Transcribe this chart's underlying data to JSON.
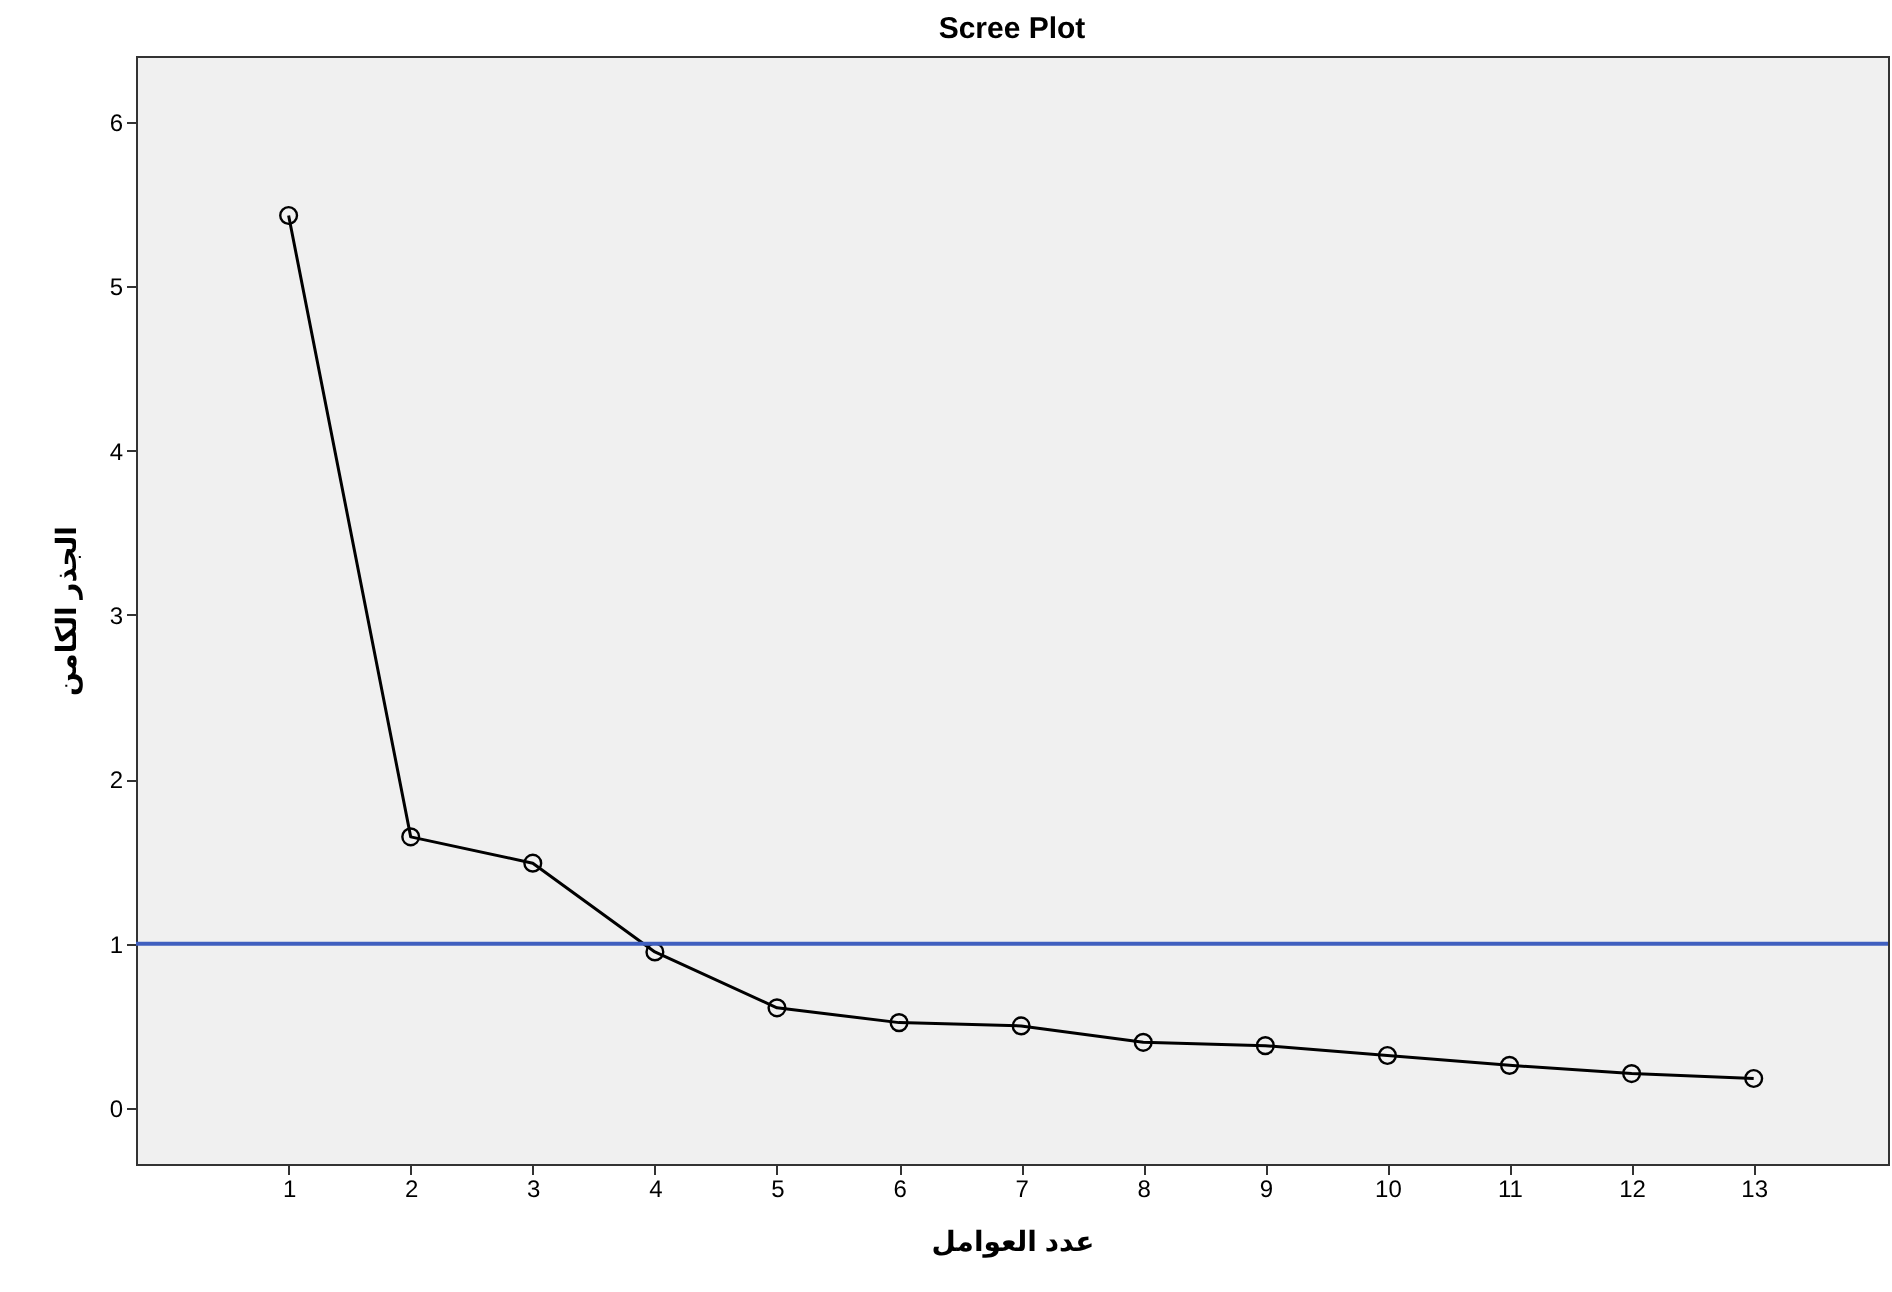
{
  "chart_data": {
    "type": "line",
    "title": "Scree Plot",
    "xlabel": "عدد العوامل",
    "ylabel": "الجذر الكامن",
    "x": [
      1,
      2,
      3,
      4,
      5,
      6,
      7,
      8,
      9,
      10,
      11,
      12,
      13
    ],
    "series": [
      {
        "color": "#000000",
        "values": [
          5.43,
          1.65,
          1.49,
          0.95,
          0.61,
          0.52,
          0.5,
          0.4,
          0.38,
          0.32,
          0.26,
          0.21,
          0.18
        ]
      }
    ],
    "xlim": [
      -0.25,
      14.1
    ],
    "xticks": [
      1,
      2,
      3,
      4,
      5,
      6,
      7,
      8,
      9,
      10,
      11,
      12,
      13
    ],
    "ylim": [
      -0.34,
      6.4
    ],
    "yticks": [
      0,
      1,
      2,
      3,
      4,
      5,
      6
    ],
    "marker": "circle",
    "line_style": "solid",
    "grid": false,
    "ref_lines": [
      {
        "axis": "y",
        "value": 1,
        "color": "#3f5fbf"
      }
    ]
  }
}
